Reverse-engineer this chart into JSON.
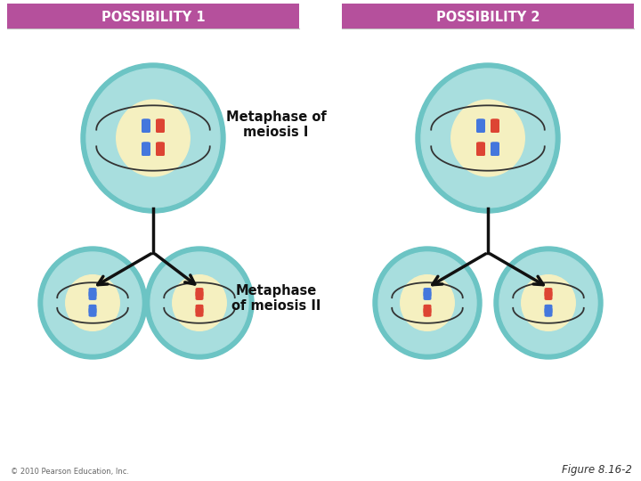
{
  "bg_color": "#ffffff",
  "header_color": "#b5509c",
  "header_text_color": "#ffffff",
  "cell_outer": "#8dd4d4",
  "cell_inner": "#f5f0c0",
  "cell_mid": "#a8dede",
  "blue_chr": "#4477dd",
  "red_chr": "#dd4433",
  "arrow_color": "#111111",
  "label_metaphase1": "Metaphase of\nmeiosis I",
  "label_metaphase2": "Metaphase\nof meiosis II",
  "label_pos1": "POSSIBILITY 1",
  "label_pos2": "POSSIBILITY 2",
  "footer_left": "© 2010 Pearson Education, Inc.",
  "footer_right": "Figure 8.16-2",
  "spindle_color": "#333333"
}
